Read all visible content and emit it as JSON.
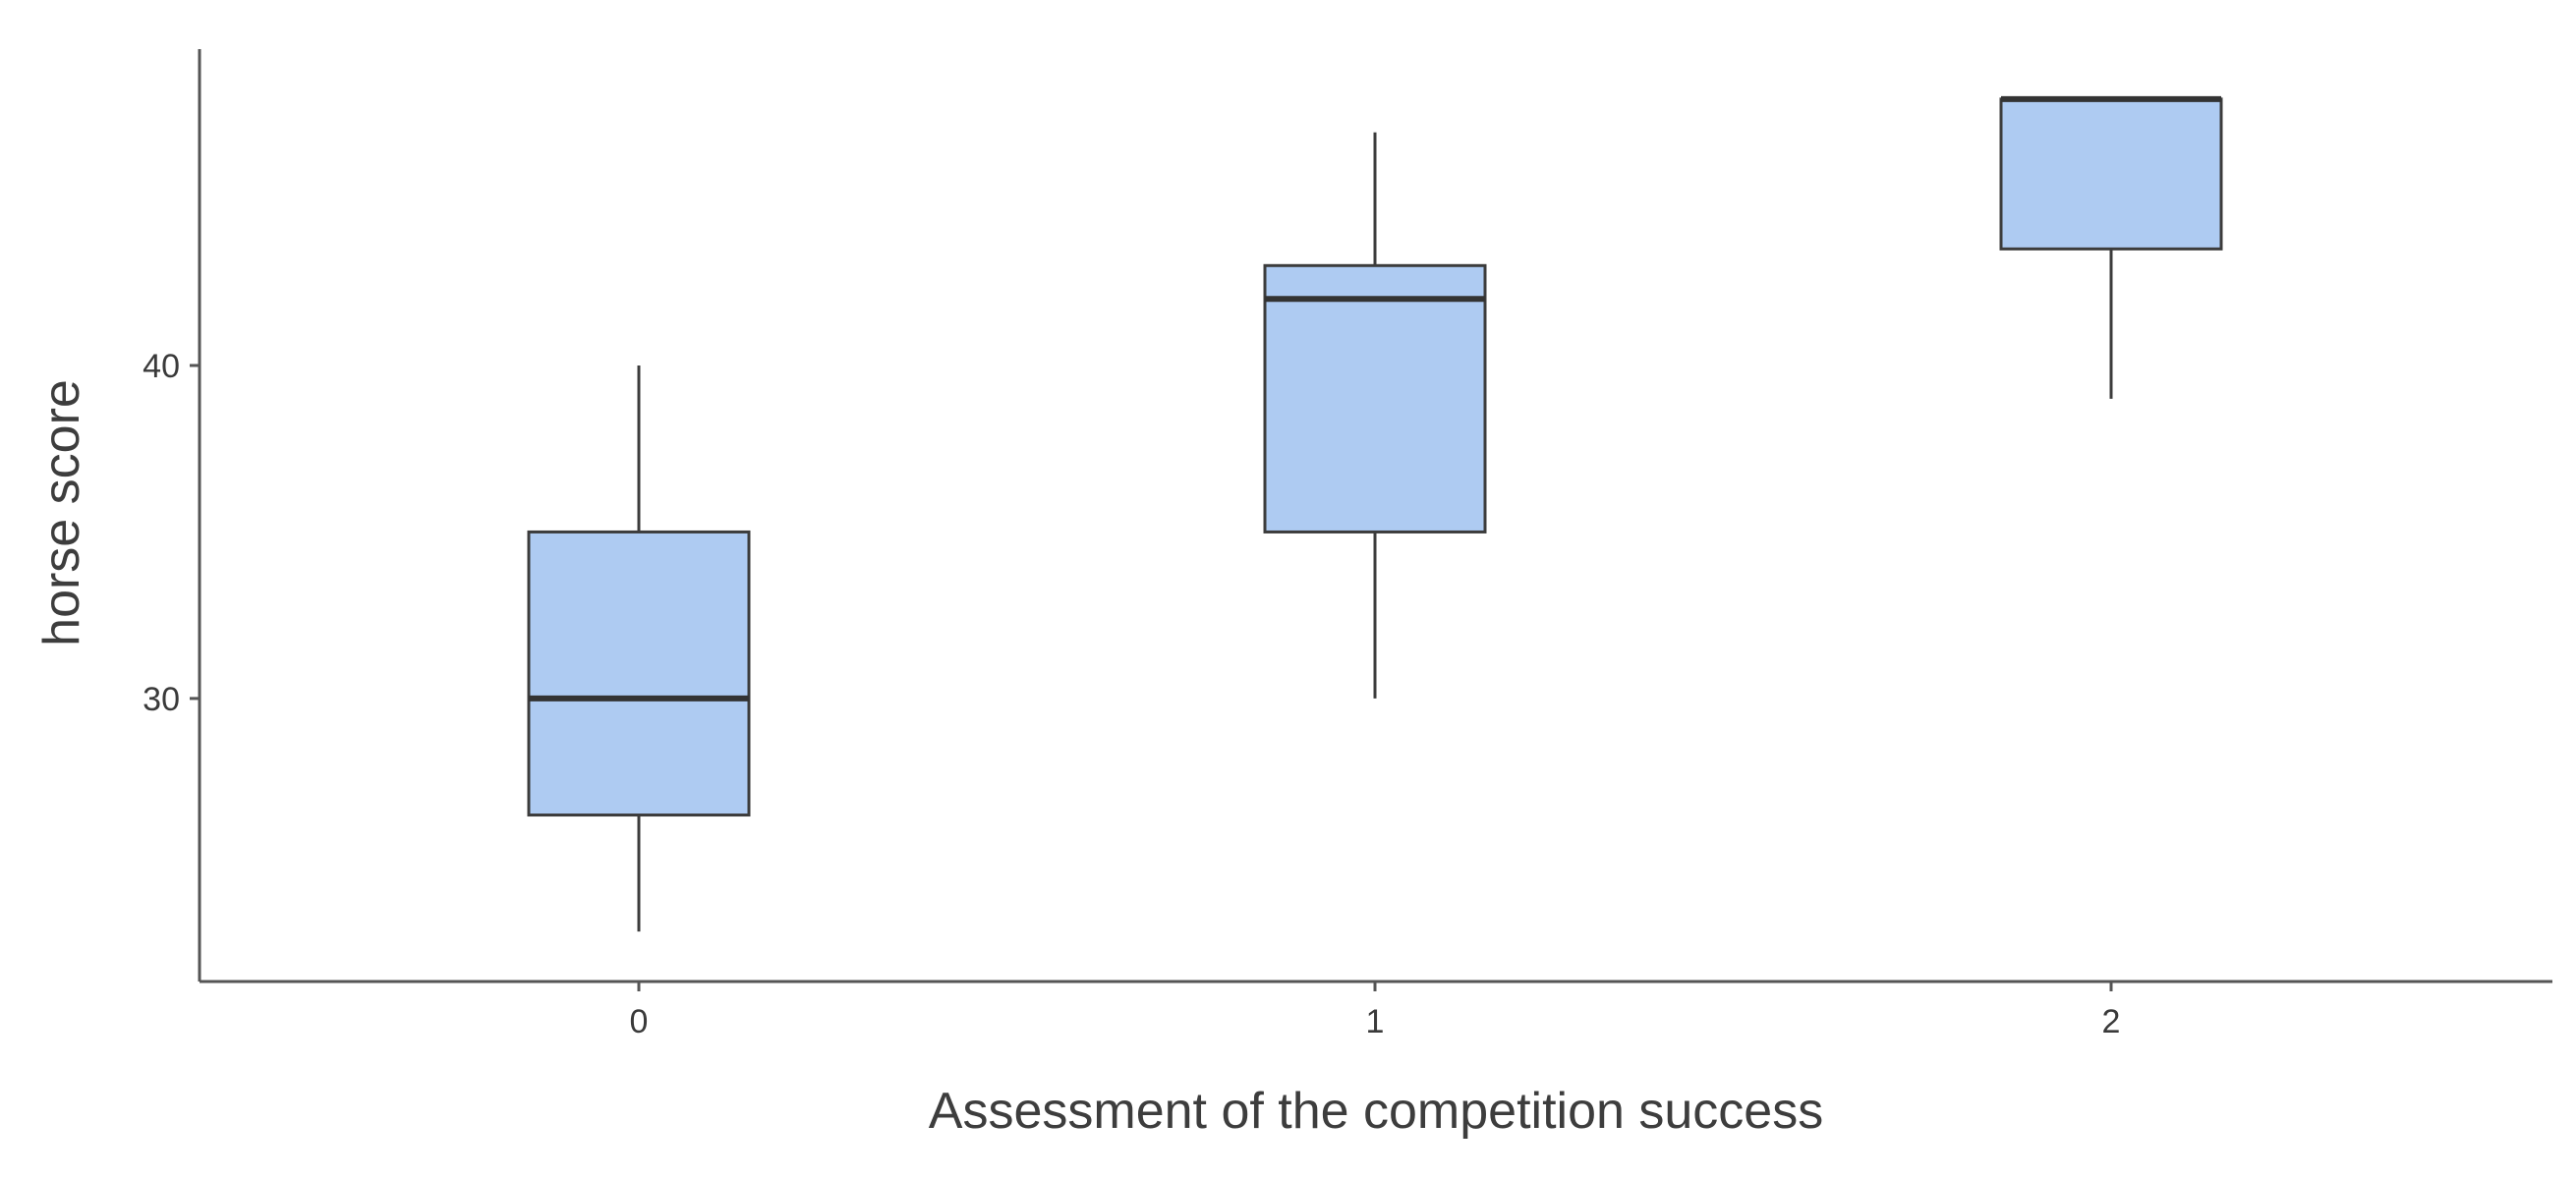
{
  "chart_data": {
    "type": "boxplot",
    "title": "",
    "xlabel": "Assessment of the competition success",
    "ylabel": "horse score",
    "categories": [
      "0",
      "1",
      "2"
    ],
    "boxes": [
      {
        "category": "0",
        "whisker_low": 23,
        "q1": 26.5,
        "median": 30,
        "q3": 35,
        "whisker_high": 40
      },
      {
        "category": "1",
        "whisker_low": 30,
        "q1": 35,
        "median": 42,
        "q3": 43,
        "whisker_high": 47
      },
      {
        "category": "2",
        "whisker_low": 39,
        "q1": 43.5,
        "median": 48,
        "q3": 48,
        "whisker_high": 48
      }
    ],
    "yticks": [
      30,
      40
    ],
    "ylim": [
      21.5,
      49.5
    ],
    "grid": false,
    "legend": "none",
    "colors": {
      "box_fill": "#aecbf2",
      "box_stroke": "#3c3c3c",
      "median": "#333333",
      "axis": "#555555"
    }
  }
}
